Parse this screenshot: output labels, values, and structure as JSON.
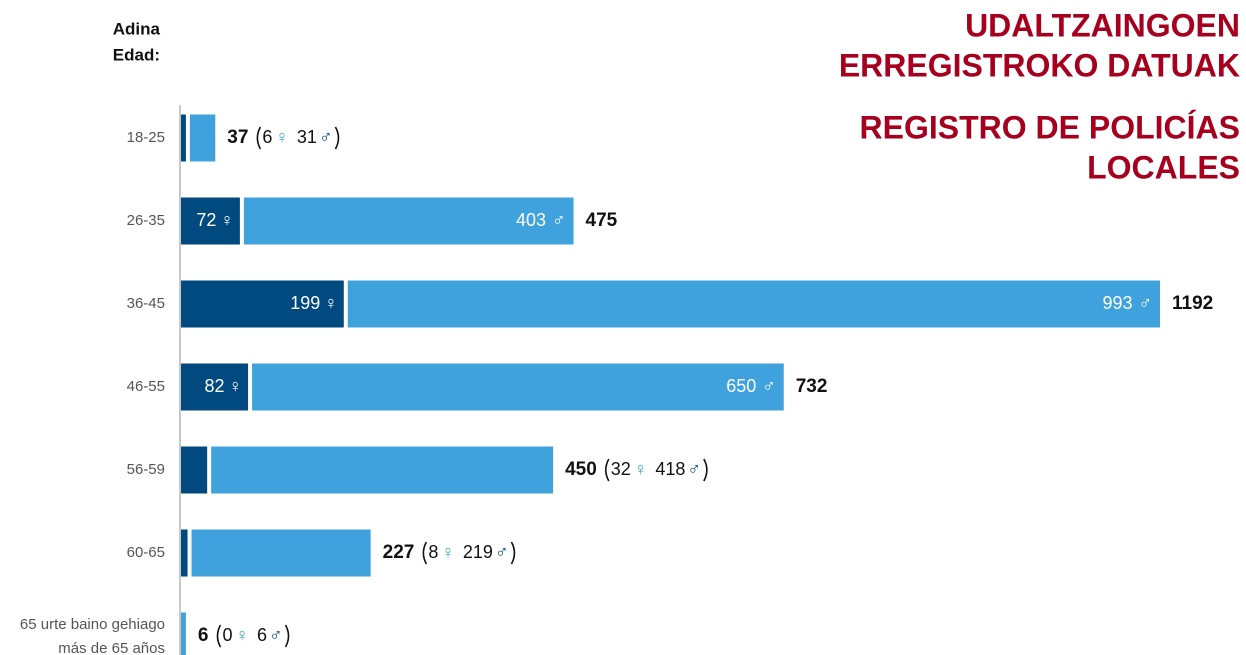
{
  "chart_data": {
    "type": "bar",
    "orientation": "horizontal",
    "stacked": true,
    "title": [
      "UDALTZAINGOEN",
      "ERREGISTROKO DATUAK"
    ],
    "subtitle": [
      "REGISTRO DE POLICÍAS",
      "LOCALES"
    ],
    "y_label": [
      "Adina",
      "Edad:"
    ],
    "categories": [
      "18-25",
      "26-35",
      "36-45",
      "46-55",
      "56-59",
      "60-65",
      [
        "65 urte baino gehiago",
        "más de 65 años"
      ]
    ],
    "series": [
      {
        "name": "♀",
        "color": "#004a80",
        "values": [
          6,
          72,
          199,
          82,
          32,
          8,
          0
        ]
      },
      {
        "name": "♂",
        "color": "#40a2dc",
        "values": [
          31,
          403,
          993,
          650,
          418,
          219,
          6
        ]
      }
    ],
    "totals": [
      37,
      475,
      1192,
      732,
      450,
      227,
      6
    ],
    "title_color": "#a6001e"
  }
}
